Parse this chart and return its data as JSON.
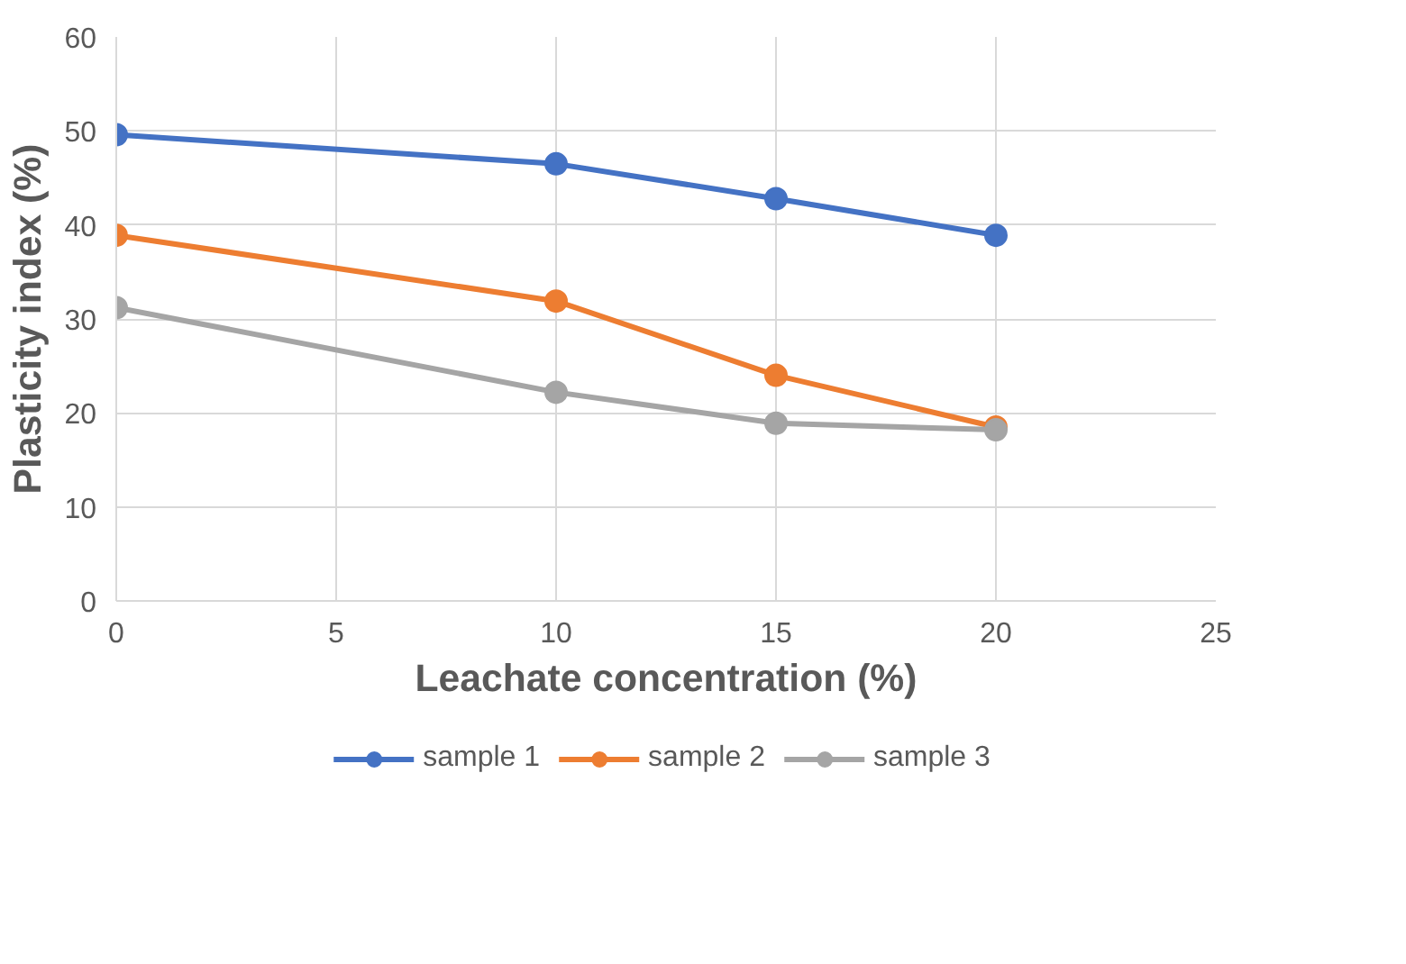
{
  "chart_data": {
    "type": "line",
    "xlabel": "Leachate concentration (%)",
    "ylabel": "Plasticity index (%)",
    "x": [
      0,
      10,
      15,
      20
    ],
    "series": [
      {
        "name": "sample 1",
        "color": "#4472c4",
        "values": [
          49.6,
          46.5,
          42.8,
          38.9
        ]
      },
      {
        "name": "sample 2",
        "color": "#ed7d31",
        "values": [
          38.9,
          31.9,
          24.0,
          18.5
        ]
      },
      {
        "name": "sample 3",
        "color": "#a5a5a5",
        "values": [
          31.2,
          22.2,
          18.9,
          18.2
        ]
      }
    ],
    "xlim": [
      0,
      25
    ],
    "xticks": [
      0,
      5,
      10,
      15,
      20,
      25
    ],
    "ylim": [
      0,
      60
    ],
    "yticks": [
      0,
      10,
      20,
      30,
      40,
      50,
      60
    ],
    "grid": true,
    "legend": "bottom",
    "marker": "circle",
    "line_style": "solid"
  }
}
